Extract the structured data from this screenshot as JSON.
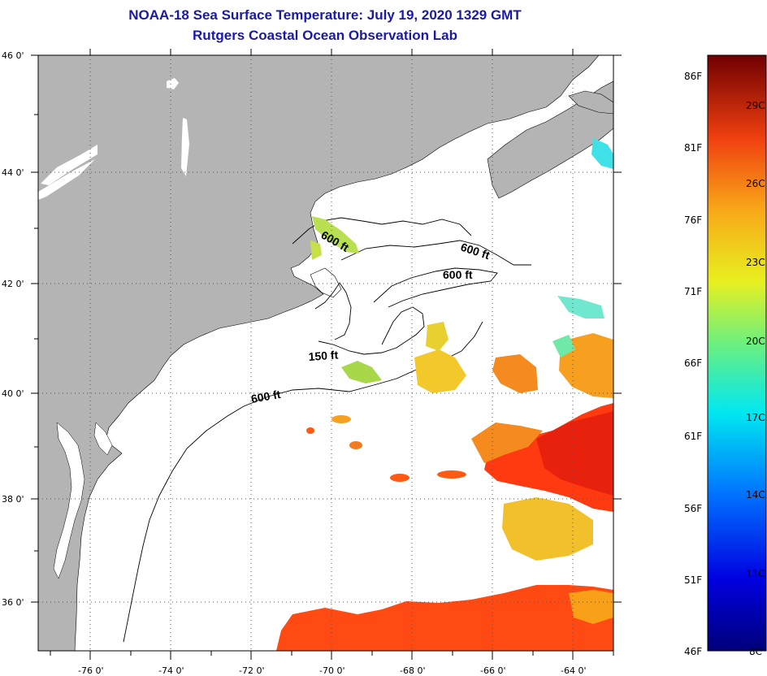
{
  "title": {
    "line1": "NOAA-18 Sea Surface Temperature:  July 19, 2020 1329 GMT",
    "line2": "Rutgers Coastal Ocean Observation Lab"
  },
  "axes": {
    "lon_labels": [
      "-76 0'",
      "-74 0'",
      "-72 0'",
      "-70 0'",
      "-68 0'",
      "-66 0'",
      "-64 0'"
    ],
    "lat_labels": [
      "46 0'",
      "44 0'",
      "42 0'",
      "40 0'",
      "38 0'",
      "36 0'"
    ]
  },
  "contours": [
    {
      "text": "600 ft"
    },
    {
      "text": "600 ft"
    },
    {
      "text": "600 ft"
    },
    {
      "text": "150 ft"
    },
    {
      "text": "600 ft"
    }
  ],
  "colorbar": {
    "fahrenheit": [
      "86F",
      "81F",
      "76F",
      "71F",
      "66F",
      "61F",
      "56F",
      "51F",
      "46F"
    ],
    "celsius": [
      "29C",
      "26C",
      "23C",
      "20C",
      "17C",
      "14C",
      "11C",
      "8C"
    ]
  },
  "colors": {
    "land": "#b4b4b4",
    "title": "#1a1aa6",
    "warm": "#ff3a10",
    "hot": "#e8200e",
    "orange": "#f58a1e",
    "yellow": "#f2c82a",
    "green": "#a8d84a",
    "cyan": "#40e0e8"
  }
}
